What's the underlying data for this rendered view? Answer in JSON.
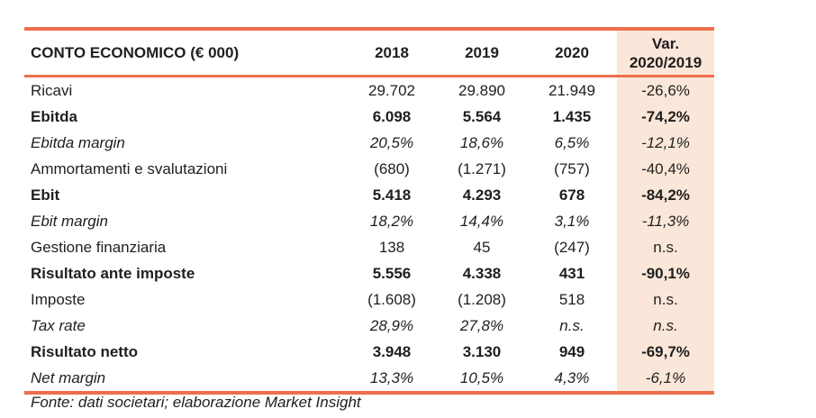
{
  "colors": {
    "accent_line": "#EE6E4C",
    "var_column_bg": "#FBE7D9",
    "text": "#1F1F1F"
  },
  "table": {
    "title": "CONTO ECONOMICO (€ 000)",
    "year_headers": [
      "2018",
      "2019",
      "2020"
    ],
    "var_header": {
      "line1": "Var.",
      "line2": "2020/2019"
    },
    "rows": [
      {
        "label": "Ricavi",
        "y2018": "29.702",
        "y2019": "29.890",
        "y2020": "21.949",
        "var": "-26,6%",
        "emphasis": "normal"
      },
      {
        "label": "Ebitda",
        "y2018": "6.098",
        "y2019": "5.564",
        "y2020": "1.435",
        "var": "-74,2%",
        "emphasis": "bold"
      },
      {
        "label": "Ebitda margin",
        "y2018": "20,5%",
        "y2019": "18,6%",
        "y2020": "6,5%",
        "var": "-12,1%",
        "emphasis": "italic"
      },
      {
        "label": "Ammortamenti e svalutazioni",
        "y2018": "(680)",
        "y2019": "(1.271)",
        "y2020": "(757)",
        "var": "-40,4%",
        "emphasis": "normal"
      },
      {
        "label": "Ebit",
        "y2018": "5.418",
        "y2019": "4.293",
        "y2020": "678",
        "var": "-84,2%",
        "emphasis": "bold"
      },
      {
        "label": "Ebit margin",
        "y2018": "18,2%",
        "y2019": "14,4%",
        "y2020": "3,1%",
        "var": "-11,3%",
        "emphasis": "italic"
      },
      {
        "label": "Gestione finanziaria",
        "y2018": "138",
        "y2019": "45",
        "y2020": "(247)",
        "var": "n.s.",
        "emphasis": "normal"
      },
      {
        "label": "Risultato ante imposte",
        "y2018": "5.556",
        "y2019": "4.338",
        "y2020": "431",
        "var": "-90,1%",
        "emphasis": "bold"
      },
      {
        "label": "Imposte",
        "y2018": "(1.608)",
        "y2019": "(1.208)",
        "y2020": "518",
        "var": "n.s.",
        "emphasis": "normal"
      },
      {
        "label": "Tax rate",
        "y2018": "28,9%",
        "y2019": "27,8%",
        "y2020": "n.s.",
        "var": "n.s.",
        "emphasis": "italic"
      },
      {
        "label": "Risultato netto",
        "y2018": "3.948",
        "y2019": "3.130",
        "y2020": "949",
        "var": "-69,7%",
        "emphasis": "bold"
      },
      {
        "label": "Net margin",
        "y2018": "13,3%",
        "y2019": "10,5%",
        "y2020": "4,3%",
        "var": "-6,1%",
        "emphasis": "italic"
      }
    ]
  },
  "footer": {
    "source": "Fonte: dati societari; elaborazione Market Insight"
  }
}
